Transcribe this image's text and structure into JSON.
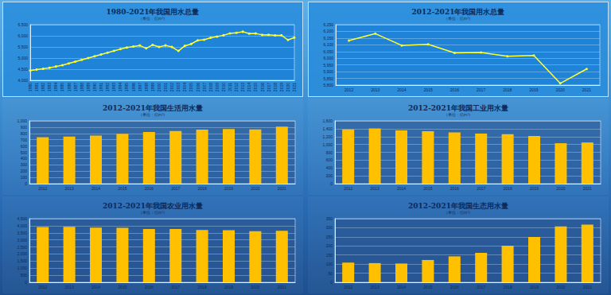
{
  "chart_data": [
    {
      "type": "line",
      "title": "1980-2021年我国用水总量",
      "subtitle": "（单位：亿m³）",
      "categories": [
        "1980",
        "1981",
        "1982",
        "1983",
        "1984",
        "1985",
        "1986",
        "1987",
        "1988",
        "1989",
        "1990",
        "1991",
        "1992",
        "1993",
        "1994",
        "1995",
        "1996",
        "1997",
        "1998",
        "1999",
        "2000",
        "2001",
        "2002",
        "2003",
        "2004",
        "2005",
        "2006",
        "2007",
        "2008",
        "2009",
        "2010",
        "2011",
        "2012",
        "2013",
        "2014",
        "2015",
        "2016",
        "2017",
        "2018",
        "2019",
        "2020",
        "2021"
      ],
      "values": [
        4437,
        4480,
        4520,
        4560,
        4620,
        4680,
        4760,
        4840,
        4920,
        5000,
        5080,
        5160,
        5240,
        5320,
        5400,
        5470,
        5520,
        5566,
        5435,
        5591,
        5498,
        5567,
        5497,
        5320,
        5548,
        5633,
        5795,
        5819,
        5910,
        5965,
        6022,
        6107,
        6131,
        6183,
        6095,
        6103,
        6040,
        6043,
        6015,
        6021,
        5813,
        5920
      ],
      "color": "#ffff33",
      "marker": "circle",
      "ylim": [
        4000,
        6500
      ],
      "yticks": [
        4000,
        4500,
        5000,
        5500,
        6000,
        6500
      ],
      "grid": true
    },
    {
      "type": "line",
      "title": "2012-2021年我国用水总量",
      "subtitle": "（单位：亿m³）",
      "categories": [
        "2012",
        "2013",
        "2014",
        "2015",
        "2016",
        "2017",
        "2018",
        "2019",
        "2020",
        "2021"
      ],
      "values": [
        6131,
        6183,
        6095,
        6103,
        6040,
        6043,
        6015,
        6021,
        5813,
        5920
      ],
      "color": "#ffff33",
      "marker": "circle",
      "ylim": [
        5800,
        6250
      ],
      "yticks": [
        5800,
        5850,
        5900,
        5950,
        6000,
        6050,
        6100,
        6150,
        6200,
        6250
      ],
      "grid": true
    },
    {
      "type": "bar",
      "title": "2012-2021年我国生活用水量",
      "subtitle": "（单位：亿m³）",
      "categories": [
        "2012",
        "2013",
        "2014",
        "2015",
        "2016",
        "2017",
        "2018",
        "2019",
        "2020",
        "2021"
      ],
      "values": [
        739.7,
        750.1,
        766.6,
        793.5,
        821.6,
        838.1,
        859.9,
        871.7,
        863.1,
        909.4
      ],
      "color": "#ffc000",
      "ylim": [
        0,
        1000
      ],
      "yticks": [
        0,
        100,
        200,
        300,
        400,
        500,
        600,
        700,
        800,
        900,
        1000
      ],
      "grid": true
    },
    {
      "type": "bar",
      "title": "2012-2021年我国工业用水量",
      "subtitle": "（单位：亿m³）",
      "categories": [
        "2012",
        "2013",
        "2014",
        "2015",
        "2016",
        "2017",
        "2018",
        "2019",
        "2020",
        "2021"
      ],
      "values": [
        1380.7,
        1406.4,
        1356.1,
        1334.8,
        1308.0,
        1277.0,
        1261.6,
        1217.6,
        1030.4,
        1049.6
      ],
      "color": "#ffc000",
      "ylim": [
        0,
        1600
      ],
      "yticks": [
        0,
        200,
        400,
        600,
        800,
        1000,
        1200,
        1400,
        1600
      ],
      "grid": true
    },
    {
      "type": "bar",
      "title": "2012-2021年我国农业用水量",
      "subtitle": "（单位：亿m³）",
      "categories": [
        "2012",
        "2013",
        "2014",
        "2015",
        "2016",
        "2017",
        "2018",
        "2019",
        "2020",
        "2021"
      ],
      "values": [
        3902.5,
        3921.5,
        3869.0,
        3852.2,
        3768.0,
        3766.4,
        3693.1,
        3682.3,
        3612.4,
        3644.3
      ],
      "color": "#ffc000",
      "ylim": [
        0,
        4500
      ],
      "yticks": [
        0,
        500,
        1000,
        1500,
        2000,
        2500,
        3000,
        3500,
        4000,
        4500
      ],
      "grid": true
    },
    {
      "type": "bar",
      "title": "2012-2021年我国生态用水量",
      "subtitle": "（单位：亿m³）",
      "categories": [
        "2012",
        "2013",
        "2014",
        "2015",
        "2016",
        "2017",
        "2018",
        "2019",
        "2020",
        "2021"
      ],
      "values": [
        108.3,
        105.4,
        103.2,
        122.7,
        142.6,
        161.9,
        200.9,
        249.6,
        307.0,
        316.7
      ],
      "color": "#ffc000",
      "ylim": [
        0,
        350
      ],
      "yticks": [
        0,
        50,
        100,
        150,
        200,
        250,
        300,
        350
      ],
      "grid": true
    }
  ]
}
